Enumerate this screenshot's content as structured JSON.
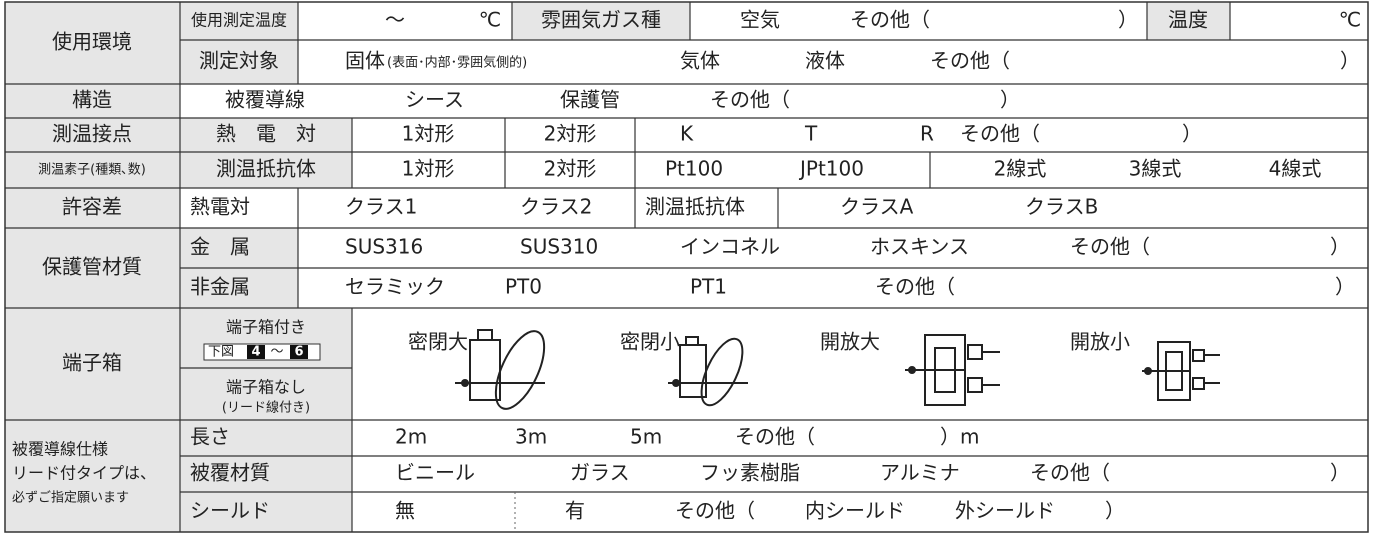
{
  "form": {
    "env": {
      "label": "使用環境",
      "items": [
        "使用測定温度",
        "～",
        "℃",
        "雰囲気ガス種",
        "空気",
        "その他（",
        "）",
        "温度",
        "℃"
      ]
    },
    "target": {
      "items": [
        "測定対象",
        "固体",
        "(表面･内部･雰囲気側的)",
        "気体",
        "液体",
        "その他（",
        "）"
      ]
    },
    "structure": {
      "label": "構造",
      "items": [
        "被覆導線",
        "シース",
        "保護管",
        "その他（",
        "）"
      ]
    },
    "junction": {
      "label": "測温接点",
      "items": [
        "熱　電　対",
        "1対形",
        "2対形",
        "K",
        "T",
        "R",
        "その他（",
        "）"
      ]
    },
    "element": {
      "label": "測温素子(種類､数)",
      "items": [
        "測温抵抗体",
        "1対形",
        "2対形",
        "Pt100",
        "JPt100",
        "2線式",
        "3線式",
        "4線式"
      ]
    },
    "tolerance": {
      "label": "許容差",
      "items": [
        "熱電対",
        "クラス1",
        "クラス2",
        "測温抵抗体",
        "クラスA",
        "クラスB"
      ]
    },
    "sheath": {
      "label": "保護管材質",
      "metal": [
        "金　属",
        "SUS316",
        "SUS310",
        "インコネル",
        "ホスキンス",
        "その他（",
        "）"
      ],
      "nonmetal": [
        "非金属",
        "セラミック",
        "PT0",
        "PT1",
        "その他（",
        "）"
      ]
    },
    "terminal": {
      "label": "端子箱",
      "with": [
        "端子箱付き",
        "下図",
        "4",
        "～",
        "6"
      ],
      "without": [
        "端子箱なし",
        "(リード線付き)"
      ],
      "types": [
        "密閉大",
        "密閉小",
        "開放大",
        "開放小"
      ]
    },
    "lead": {
      "label": [
        "被覆導線仕様",
        "リード付タイプは、",
        "必ずご指定願います"
      ],
      "length": [
        "長さ",
        "2m",
        "3m",
        "5m",
        "その他（",
        "）m"
      ],
      "cover": [
        "被覆材質",
        "ビニール",
        "ガラス",
        "フッ素樹脂",
        "アルミナ",
        "その他（",
        "）"
      ],
      "shield": [
        "シールド",
        "無",
        "有",
        "その他（",
        "内シールド",
        "外シールド",
        "）"
      ]
    }
  }
}
